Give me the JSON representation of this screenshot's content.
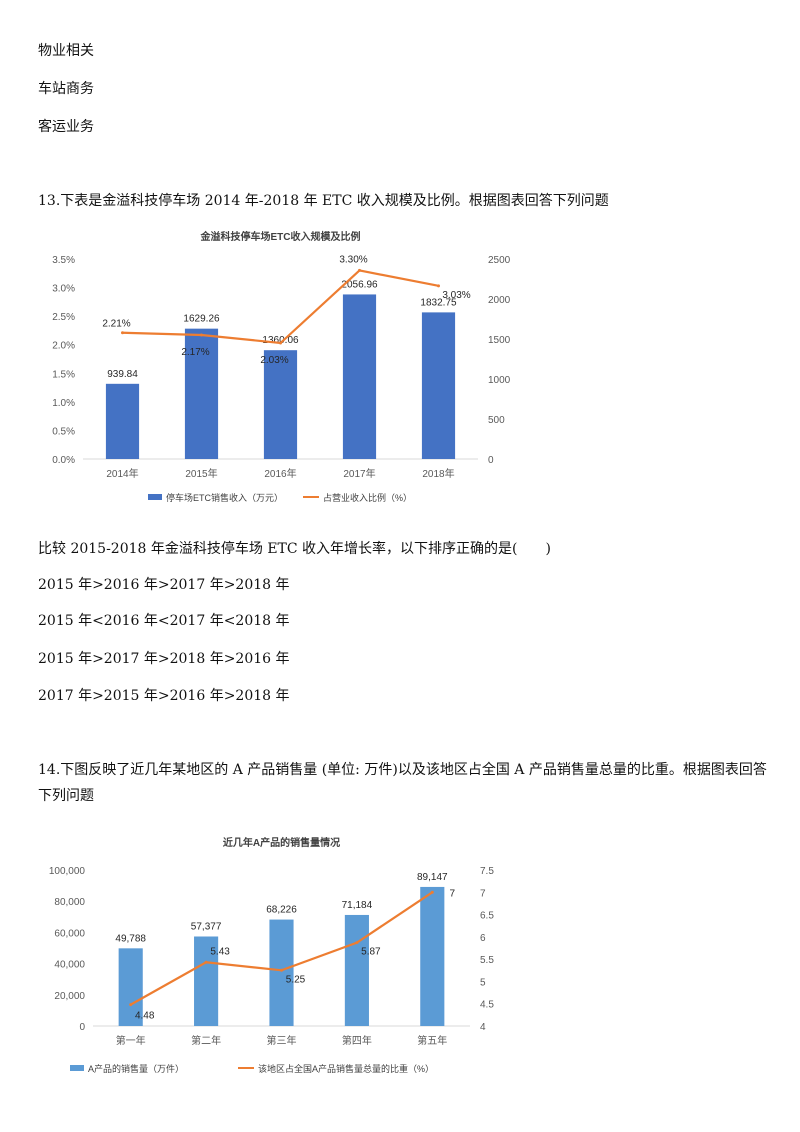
{
  "options_prev": [
    "物业相关",
    "车站商务",
    "客运业务"
  ],
  "q13": {
    "question": "13.下表是金溢科技停车场 2014 年-2018 年 ETC 收入规模及比例。根据图表回答下列问题",
    "sub_question": "比较 2015-2018 年金溢科技停车场 ETC 收入年增长率，以下排序正确的是(　　)",
    "options": [
      "2015 年>2016 年>2017 年>2018 年",
      "2015 年<2016 年<2017 年<2018 年",
      "2015 年>2017 年>2018 年>2016 年",
      "2017 年>2015 年>2016 年>2018 年"
    ]
  },
  "q14": {
    "question": "14.下图反映了近几年某地区的 A 产品销售量 (单位: 万件)以及该地区占全国 A 产品销售量总量的比重。根据图表回答下列问题"
  },
  "colors": {
    "bar": "#4472c4",
    "bar2": "#5b9bd5",
    "line": "#ed7d31",
    "axis": "#595959"
  },
  "chart_data": [
    {
      "type": "bar",
      "title": "金溢科技停车场ETC收入规模及比例",
      "categories": [
        "2014年",
        "2015年",
        "2016年",
        "2017年",
        "2018年"
      ],
      "series": [
        {
          "name": "停车场ETC销售收入（万元）",
          "values": [
            939.84,
            1629.26,
            1360.06,
            2056.96,
            1832.75
          ],
          "axis": "right"
        },
        {
          "name": "占营业收入比例（%）",
          "type": "line",
          "values": [
            2.21,
            2.17,
            2.03,
            3.3,
            3.03
          ],
          "axis": "left"
        }
      ],
      "bar_labels": [
        "939.84",
        "1629.26",
        "1360.06",
        "2056.96",
        "1832.75"
      ],
      "line_labels": [
        "2.21%",
        "2.17%",
        "2.03%",
        "3.30%",
        "3.03%"
      ],
      "ylim_left": [
        0,
        3.5
      ],
      "ylim_right": [
        0,
        2500
      ],
      "left_ticks": [
        "0.0%",
        "0.5%",
        "1.0%",
        "1.5%",
        "2.0%",
        "2.5%",
        "3.0%",
        "3.5%"
      ],
      "right_ticks": [
        "0",
        "500",
        "1000",
        "1500",
        "2000",
        "2500"
      ],
      "legend": "bottom",
      "grid": false
    },
    {
      "type": "bar",
      "title": "近几年A产品的销售量情况",
      "categories": [
        "第一年",
        "第二年",
        "第三年",
        "第四年",
        "第五年"
      ],
      "series": [
        {
          "name": "A产品的销售量（万件）",
          "values": [
            49788,
            57377,
            68226,
            71184,
            89147
          ],
          "axis": "left"
        },
        {
          "name": "该地区占全国A产品销售量总量的比重（%）",
          "type": "line",
          "values": [
            4.48,
            5.43,
            5.25,
            5.87,
            7
          ],
          "axis": "right"
        }
      ],
      "bar_labels": [
        "49,788",
        "57,377",
        "68,226",
        "71,184",
        "89,147"
      ],
      "line_labels": [
        "4.48",
        "5.43",
        "5.25",
        "5.87",
        "7"
      ],
      "ylim_left": [
        0,
        100000
      ],
      "ylim_right": [
        4,
        7.5
      ],
      "left_ticks": [
        "0",
        "20,000",
        "40,000",
        "60,000",
        "80,000",
        "100,000"
      ],
      "right_ticks": [
        "4",
        "4.5",
        "5",
        "5.5",
        "6",
        "6.5",
        "7",
        "7.5"
      ],
      "legend": "bottom",
      "grid": false
    }
  ]
}
